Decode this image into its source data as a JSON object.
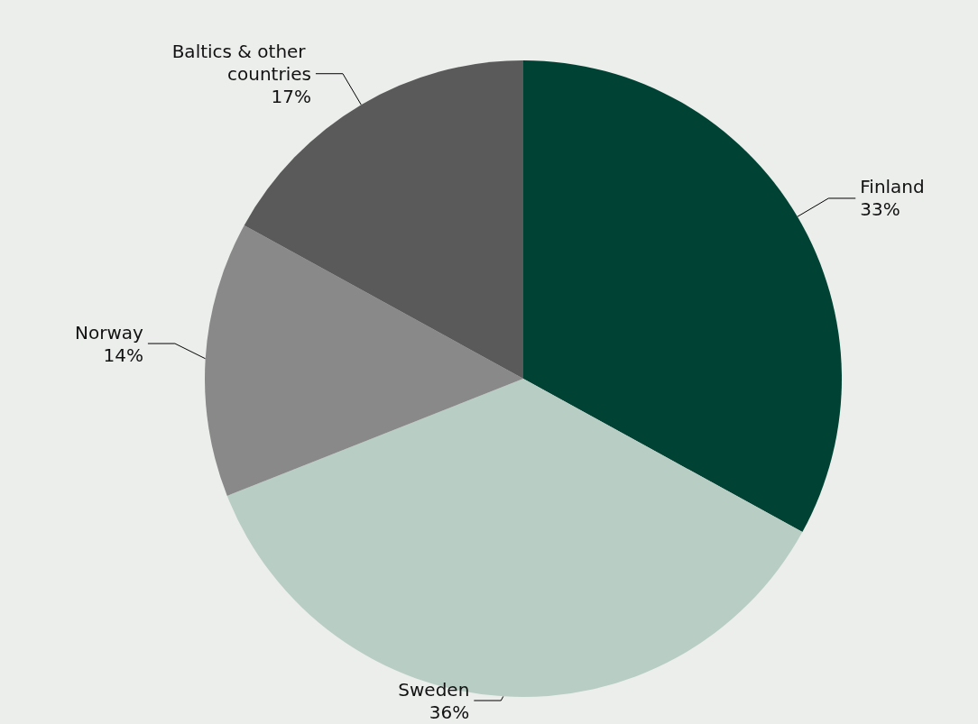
{
  "chart_data": {
    "type": "pie",
    "categories": [
      "Finland",
      "Sweden",
      "Norway",
      "Baltics & other countries"
    ],
    "values": [
      33,
      36,
      14,
      17
    ],
    "colors": [
      "#004233",
      "#b8cdc4",
      "#898989",
      "#5a5a5a"
    ],
    "value_labels": [
      "33%",
      "36%",
      "14%",
      "17%"
    ],
    "legend": false
  }
}
